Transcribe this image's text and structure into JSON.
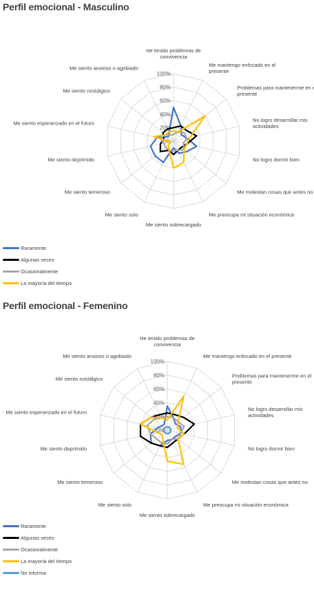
{
  "chart_data": [
    {
      "type": "radar",
      "title": "Perfil emocional - Masculino",
      "categories": [
        "He tenido problemas de convivencia",
        "Me mantengo enfocado en el presente",
        "Problemas para mantenerme en el presente",
        "No logro desarrollar mis actividades",
        "No logro dormir bien",
        "Me molestan cosas que antes no",
        "Me preocupa mi situación económica",
        "Me siento sobrecargado",
        "Me siento solo",
        "Me siento temeroso",
        "Me siento deprimido",
        "Me siento esperanzado en el futuro",
        "Me siento nostálgico",
        "Me siento ansioso o agobiado"
      ],
      "ticks": [
        "0%",
        "20%",
        "40%",
        "60%",
        "80%",
        "100%"
      ],
      "range": [
        0,
        100
      ],
      "series": [
        {
          "name": "Raramente",
          "color": "#4472C4",
          "values": [
            50,
            25,
            15,
            20,
            35,
            25,
            20,
            10,
            35,
            35,
            35,
            25,
            10,
            15
          ]
        },
        {
          "name": "Algunas veces",
          "color": "#000000",
          "values": [
            20,
            25,
            25,
            35,
            20,
            15,
            15,
            20,
            15,
            25,
            20,
            15,
            20,
            20
          ]
        },
        {
          "name": "Ocasionalmente",
          "color": "#A5A5A5",
          "values": [
            10,
            15,
            20,
            20,
            15,
            20,
            15,
            15,
            15,
            15,
            15,
            20,
            15,
            10
          ]
        },
        {
          "name": "La mayoría del tiempo",
          "color": "#FFC000",
          "values": [
            15,
            15,
            60,
            25,
            20,
            20,
            35,
            40,
            15,
            10,
            5,
            30,
            15,
            15
          ]
        }
      ],
      "legend_position": "bottom-left"
    },
    {
      "type": "radar",
      "title": "Perfil emocional - Femenino",
      "categories": [
        "He tenido problemas de convivencia",
        "Me mantengo enfocado en el presente",
        "Problemas para mantenerme en el presente",
        "No logro desarrollar mis actividades",
        "No logro dormir bien",
        "Me molestan cosas que antes no",
        "Me preocupa mi situación económica",
        "Me siento sobrecargado",
        "Me siento solo",
        "Me siento temeroso",
        "Me siento deprimido",
        "Me siento esperanzado en el futuro",
        "Me siento nostálgico",
        "Me siento ansioso o agobiado"
      ],
      "ticks": [
        "0%",
        "20%",
        "40%",
        "60%",
        "80%",
        "100%"
      ],
      "range": [
        0,
        100
      ],
      "series": [
        {
          "name": "Raramente",
          "color": "#4472C4",
          "values": [
            35,
            20,
            15,
            20,
            20,
            15,
            15,
            15,
            25,
            30,
            25,
            15,
            10,
            10
          ]
        },
        {
          "name": "Algunas veces",
          "color": "#000000",
          "values": [
            25,
            25,
            30,
            40,
            25,
            20,
            20,
            25,
            25,
            30,
            40,
            40,
            30,
            25
          ]
        },
        {
          "name": "Ocasionalmente",
          "color": "#A5A5A5",
          "values": [
            20,
            20,
            20,
            25,
            20,
            20,
            15,
            20,
            20,
            20,
            25,
            30,
            25,
            20
          ]
        },
        {
          "name": "La mayoría del tiempo",
          "color": "#FFC000",
          "values": [
            15,
            55,
            20,
            15,
            25,
            20,
            55,
            45,
            15,
            10,
            15,
            40,
            30,
            20
          ]
        },
        {
          "name": "No informa",
          "color": "#5B9BD5",
          "values": [
            5,
            5,
            5,
            5,
            5,
            5,
            5,
            5,
            5,
            5,
            5,
            5,
            5,
            5
          ]
        }
      ],
      "legend_position": "bottom-left"
    }
  ]
}
